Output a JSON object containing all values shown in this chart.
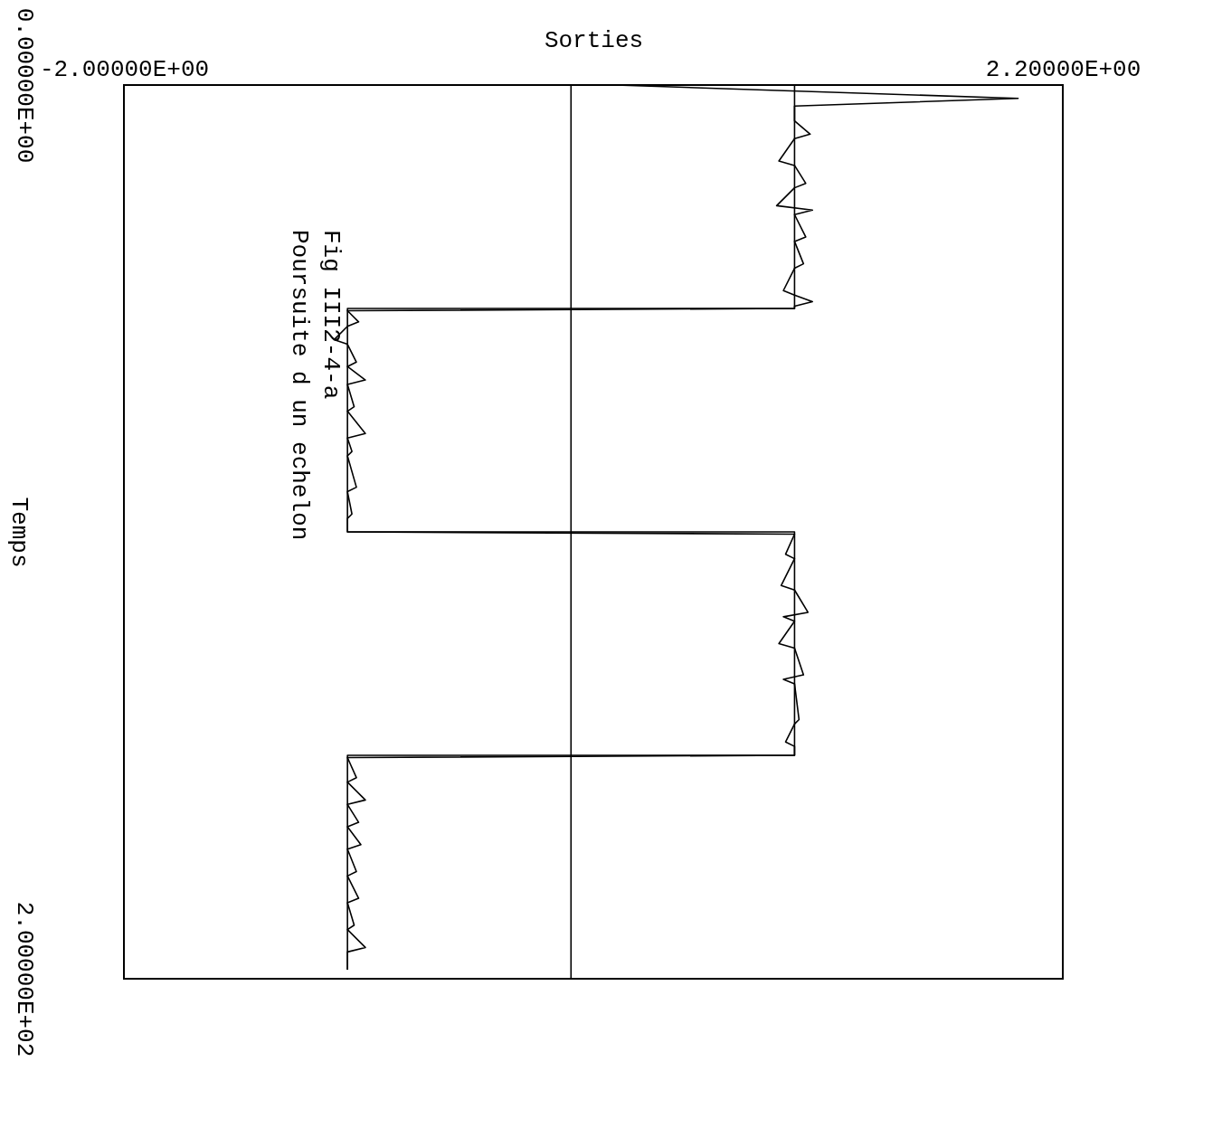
{
  "chart_data": {
    "type": "line",
    "xlabel": "Sorties",
    "ylabel": "Temps",
    "xlim": [
      -2,
      2.2
    ],
    "xticks": [
      {
        "value": -2,
        "label": "-2.00000E+00"
      },
      {
        "value": 2.2,
        "label": "2.20000E+00"
      }
    ],
    "ylim": [
      200,
      0
    ],
    "yticks": [
      {
        "value": 0,
        "label": "0.00000E+00"
      },
      {
        "value": 200,
        "label": "2.00000E+02"
      }
    ],
    "grid": false,
    "line_style": "solid",
    "ref_lines": [
      {
        "axis": "x",
        "value": 0,
        "color": "#000000"
      }
    ],
    "annotations": [
      "Fig III2-4-a",
      "Poursuite d un echelon"
    ],
    "series": [
      {
        "color": "#000000",
        "values": [
          0,
          50,
          50,
          100,
          100,
          150,
          150,
          198
        ],
        "x": [
          1,
          1,
          -1,
          -1,
          1,
          1,
          -1,
          -1
        ]
      },
      {
        "color": "#000000",
        "values": [
          0,
          3,
          4.7,
          8,
          11,
          12,
          17,
          18,
          22,
          23,
          27,
          28,
          29,
          34,
          35,
          40,
          41,
          46,
          47,
          48.5,
          49.5,
          50,
          50.5,
          53,
          54,
          57,
          58,
          62,
          63,
          66,
          67,
          72,
          73,
          78,
          79,
          82,
          83,
          90,
          91,
          96,
          97,
          100,
          100.5,
          105,
          106,
          112,
          113,
          118,
          119,
          120,
          125,
          126,
          132,
          133,
          134,
          142,
          143,
          147,
          148,
          150,
          150.5,
          155,
          156,
          160,
          161,
          165,
          166,
          170,
          171,
          176,
          177,
          182,
          183,
          188,
          189,
          193,
          194,
          198
        ],
        "x": [
          0.2,
          2.0,
          1.0,
          1.0,
          1.07,
          1.0,
          0.93,
          1.0,
          1.05,
          1.0,
          0.92,
          1.08,
          1.0,
          1.05,
          1.0,
          1.04,
          1.0,
          0.95,
          1.0,
          1.08,
          1.0,
          1.0,
          -1.0,
          -0.95,
          -1.0,
          -1.06,
          -1.0,
          -0.96,
          -1.0,
          -0.92,
          -1.0,
          -0.97,
          -1.0,
          -0.92,
          -1.0,
          -0.98,
          -1.0,
          -0.96,
          -1.0,
          -0.98,
          -1.0,
          -1.0,
          1.0,
          0.96,
          1.0,
          0.94,
          1.0,
          1.06,
          0.95,
          1.0,
          0.93,
          1.0,
          1.04,
          0.95,
          1.0,
          1.02,
          1.0,
          0.96,
          1.0,
          1.0,
          -1.0,
          -0.96,
          -1.0,
          -0.92,
          -1.0,
          -0.95,
          -1.0,
          -0.94,
          -1.0,
          -0.96,
          -1.0,
          -0.95,
          -1.0,
          -0.97,
          -1.0,
          -0.92,
          -1.0,
          -1.0
        ]
      }
    ]
  }
}
